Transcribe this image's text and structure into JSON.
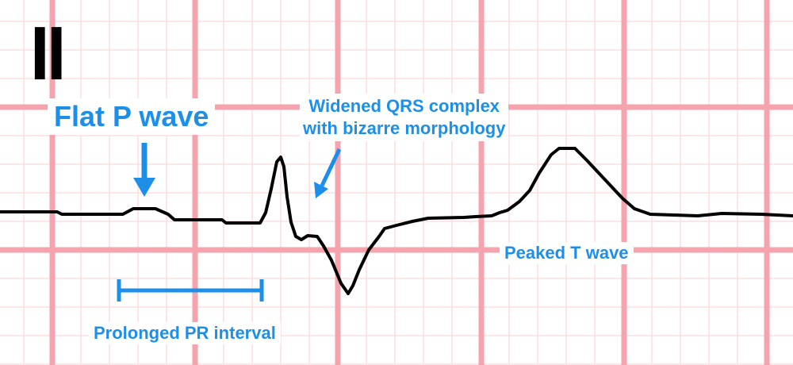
{
  "lead": "II",
  "annotations": {
    "flat_p_wave": "Flat P wave",
    "qrs_line1": "Widened QRS complex",
    "qrs_line2": "with bizarre morphology",
    "peaked_t_wave": "Peaked T wave",
    "prolonged_pr": "Prolonged PR interval"
  },
  "colors": {
    "grid_major": "#f5a3ad",
    "grid_minor": "#fbdde1",
    "trace": "#000000",
    "annotation": "#1e8fe8",
    "lead_text": "#000000"
  }
}
